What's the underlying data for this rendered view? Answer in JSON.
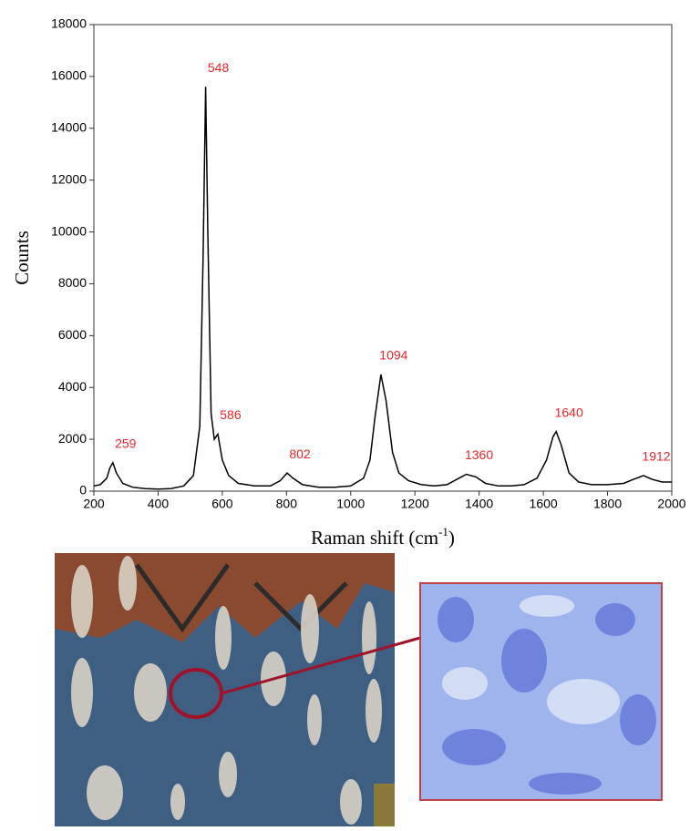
{
  "chart_data": {
    "type": "line",
    "y_label": "Counts",
    "x_label": "Raman shift (cm",
    "x_label_sup": "-1",
    "x_label_end": ")",
    "color": "#000000",
    "peak_color": "#e8262b",
    "x": [
      200,
      220,
      240,
      250,
      259,
      270,
      290,
      320,
      360,
      400,
      440,
      480,
      510,
      530,
      540,
      548,
      555,
      565,
      575,
      586,
      600,
      620,
      650,
      700,
      750,
      780,
      802,
      820,
      850,
      900,
      950,
      1000,
      1040,
      1060,
      1075,
      1094,
      1110,
      1130,
      1150,
      1180,
      1220,
      1260,
      1300,
      1330,
      1360,
      1390,
      1420,
      1460,
      1500,
      1540,
      1580,
      1610,
      1630,
      1640,
      1655,
      1680,
      1710,
      1750,
      1800,
      1850,
      1880,
      1912,
      1940,
      1970,
      2000
    ],
    "values": [
      200,
      250,
      500,
      900,
      1100,
      700,
      300,
      150,
      100,
      80,
      100,
      200,
      600,
      2500,
      9000,
      15600,
      10000,
      3000,
      2000,
      2200,
      1200,
      600,
      300,
      200,
      200,
      400,
      700,
      500,
      250,
      150,
      150,
      200,
      500,
      1200,
      2800,
      4500,
      3500,
      1500,
      700,
      400,
      250,
      200,
      250,
      450,
      650,
      550,
      300,
      200,
      200,
      250,
      500,
      1200,
      2100,
      2300,
      1800,
      700,
      350,
      250,
      250,
      300,
      450,
      600,
      450,
      350,
      350
    ],
    "peaks": [
      {
        "x": 259,
        "y": 1100
      },
      {
        "x": 548,
        "y": 15600
      },
      {
        "x": 586,
        "y": 2200
      },
      {
        "x": 802,
        "y": 700
      },
      {
        "x": 1094,
        "y": 4500
      },
      {
        "x": 1360,
        "y": 650
      },
      {
        "x": 1640,
        "y": 2300
      },
      {
        "x": 1912,
        "y": 600
      }
    ],
    "xlim": [
      200,
      2000
    ],
    "ylim": [
      0,
      18000
    ],
    "xticks": [
      200,
      400,
      600,
      800,
      1000,
      1200,
      1400,
      1600,
      1800,
      2000
    ],
    "yticks": [
      0,
      2000,
      4000,
      6000,
      8000,
      10000,
      12000,
      14000,
      16000,
      18000
    ]
  }
}
